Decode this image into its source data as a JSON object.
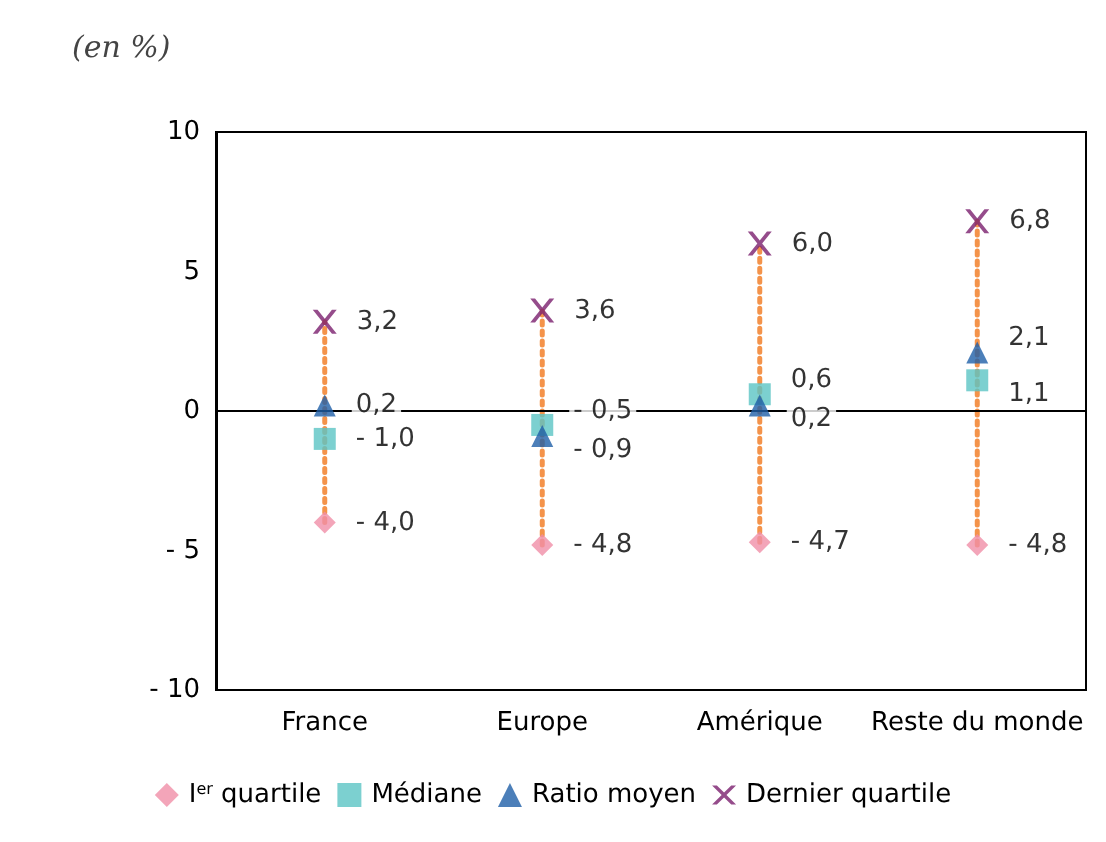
{
  "chart_data": {
    "type": "scatter",
    "ylabel": "(en %)",
    "categories": [
      "France",
      "Europe",
      "Amérique",
      "Reste du monde"
    ],
    "series": [
      {
        "name": "I$^{er}$ quartile",
        "color": "#f08fa8",
        "marker": "diamond",
        "values": [
          -4.0,
          -4.8,
          -4.7,
          -4.8
        ],
        "value_labels": [
          "- 4,0",
          "- 4,8",
          "- 4,7",
          "- 4,8"
        ]
      },
      {
        "name": "Médiane",
        "color": "#5bc4c4",
        "marker": "square",
        "values": [
          -1.0,
          -0.5,
          0.6,
          1.1
        ],
        "value_labels": [
          "- 1,0",
          "- 0,5",
          "0,6",
          "1,1"
        ]
      },
      {
        "name": "Ratio moyen",
        "color": "#1f5fa8",
        "marker": "triangle",
        "values": [
          0.2,
          -0.9,
          0.2,
          2.1
        ],
        "value_labels": [
          "0,2",
          "- 0,9",
          "0,2",
          "2,1"
        ]
      },
      {
        "name": "Dernier quartile",
        "color": "#7b1f6e",
        "marker": "cross",
        "values": [
          3.2,
          3.6,
          6.0,
          6.8
        ],
        "value_labels": [
          "3,2",
          "3,6",
          "6,0",
          "6,8"
        ]
      },
      {
        "type": "line",
        "color": "#f4934a",
        "line_style": "dotted",
        "marker": "none",
        "x": [
          "France",
          "France"
        ],
        "values": [
          -4.0,
          3.2
        ]
      },
      {
        "type": "line",
        "color": "#f4934a",
        "line_style": "dotted",
        "marker": "none",
        "x": [
          "Europe",
          "Europe"
        ],
        "values": [
          -4.8,
          3.6
        ]
      },
      {
        "type": "line",
        "color": "#f4934a",
        "line_style": "dotted",
        "marker": "none",
        "x": [
          "Amérique",
          "Amérique"
        ],
        "values": [
          -4.7,
          6.0
        ]
      },
      {
        "type": "line",
        "color": "#f4934a",
        "line_style": "dotted",
        "marker": "none",
        "x": [
          "Reste du monde",
          "Reste du monde"
        ],
        "values": [
          -4.8,
          6.8
        ]
      }
    ],
    "ylim": [
      -10,
      10
    ],
    "yticks": [
      {
        "value": -10,
        "label": "- 10"
      },
      {
        "value": -5,
        "label": "- 5"
      },
      0,
      5,
      10
    ],
    "ref_lines": [
      {
        "axis": "y",
        "value": 0,
        "color": "#000000"
      }
    ],
    "grid": false,
    "legend": "bottom"
  }
}
